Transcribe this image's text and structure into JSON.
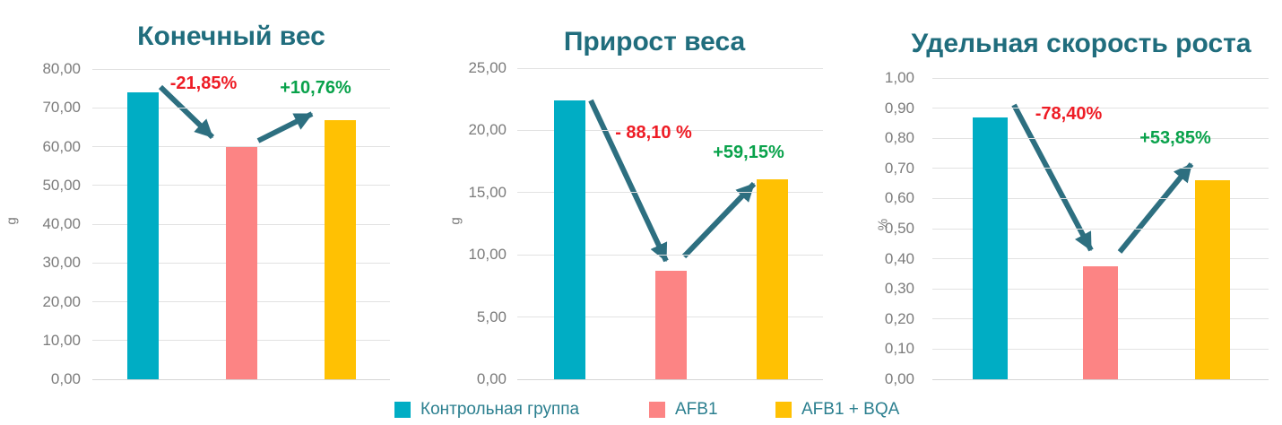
{
  "page": {
    "background": "#ffffff"
  },
  "colors": {
    "control": "#00ADC4",
    "afb1": "#FC8484",
    "afb1_bqa": "#FFC103",
    "title": "#206D7D",
    "tick": "#7B7B7B",
    "grid": "#E2E2E2",
    "arrow": "#2D6F80",
    "negative": "#EE1C25",
    "positive": "#09A24B",
    "legend_text": "#2B7F8F"
  },
  "legend": {
    "items": [
      {
        "label": "Контрольная группа",
        "color_key": "control"
      },
      {
        "label": "AFB1",
        "color_key": "afb1"
      },
      {
        "label": "AFB1 + BQA",
        "color_key": "afb1_bqa"
      }
    ]
  },
  "chart_data": [
    {
      "type": "bar",
      "title": "Конечный вес",
      "ylabel": "g",
      "ylim": [
        0,
        80
      ],
      "grid": true,
      "legend_position": "bottom",
      "yticks": [
        "80,00",
        "70,00",
        "60,00",
        "50,00",
        "40,00",
        "30,00",
        "20,00",
        "10,00",
        "0,00"
      ],
      "categories": [
        "Контрольная группа",
        "AFB1",
        "AFB1 + BQA"
      ],
      "values": [
        74.0,
        59.8,
        66.8
      ],
      "series_color_keys": [
        "control",
        "afb1",
        "afb1_bqa"
      ],
      "annotations": [
        {
          "text": "-21,85%",
          "sentiment": "negative",
          "arrow": "down"
        },
        {
          "text": "+10,76%",
          "sentiment": "positive",
          "arrow": "up"
        }
      ]
    },
    {
      "type": "bar",
      "title": "Прирост веса",
      "ylabel": "g",
      "ylim": [
        0,
        25
      ],
      "grid": true,
      "legend_position": "bottom",
      "yticks": [
        "25,00",
        "20,00",
        "15,00",
        "10,00",
        "5,00",
        "0,00"
      ],
      "categories": [
        "Контрольная группа",
        "AFB1",
        "AFB1 + BQA"
      ],
      "values": [
        22.4,
        8.7,
        16.1
      ],
      "series_color_keys": [
        "control",
        "afb1",
        "afb1_bqa"
      ],
      "annotations": [
        {
          "text": "- 88,10 %",
          "sentiment": "negative",
          "arrow": "down"
        },
        {
          "text": "+59,15%",
          "sentiment": "positive",
          "arrow": "up"
        }
      ]
    },
    {
      "type": "bar",
      "title": "Удельная скорость роста",
      "ylabel": "%",
      "ylim": [
        0,
        1
      ],
      "grid": true,
      "legend_position": "bottom",
      "yticks": [
        "1,00",
        "0,90",
        "0,80",
        "0,70",
        "0,60",
        "0,50",
        "0,40",
        "0,30",
        "0,20",
        "0,10",
        "0,00"
      ],
      "categories": [
        "Контрольная группа",
        "AFB1",
        "AFB1 + BQA"
      ],
      "values": [
        0.87,
        0.375,
        0.66
      ],
      "series_color_keys": [
        "control",
        "afb1",
        "afb1_bqa"
      ],
      "annotations": [
        {
          "text": "-78,40%",
          "sentiment": "negative",
          "arrow": "down"
        },
        {
          "text": "+53,85%",
          "sentiment": "positive",
          "arrow": "up"
        }
      ]
    }
  ]
}
